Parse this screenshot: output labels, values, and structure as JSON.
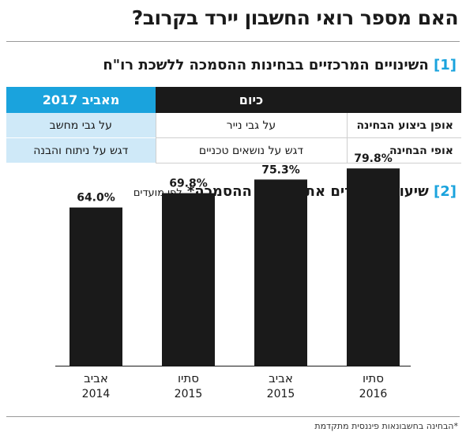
{
  "title": "האם מספר רואי החשבון יירד בקרוב?",
  "section1": {
    "badge": "[1]",
    "title": "השינויים המרכזיים בבחינות ההסמכה ללשכת רו\"ח"
  },
  "table": {
    "headers": [
      "",
      "כיום",
      "מאביב 2017"
    ],
    "rows": [
      {
        "label": "אופן ביצוע הבחינה",
        "today": "על גבי נייר",
        "from2017": "על גבי מחשב"
      },
      {
        "label": "אופי הבחינה",
        "today": "דגש על נושאים טכניים",
        "from2017": "דגש על ניתוח והבנה"
      }
    ]
  },
  "section2": {
    "badge": "[2]",
    "title": "שיעור העוברים את בחינות ההסמכה*",
    "subtitle": "לפי מועדים"
  },
  "chart_data": {
    "type": "bar",
    "categories": [
      {
        "season": "אביב",
        "year": "2014"
      },
      {
        "season": "סתיו",
        "year": "2015"
      },
      {
        "season": "אביב",
        "year": "2015"
      },
      {
        "season": "סתיו",
        "year": "2016"
      }
    ],
    "values": [
      64.0,
      69.8,
      75.3,
      79.8
    ],
    "value_labels": [
      "64.0%",
      "69.8%",
      "75.3%",
      "79.8%"
    ],
    "title": "שיעור העוברים את בחינות ההסמכה*",
    "bar_color": "#1a1a1a",
    "grid": false
  },
  "footnote": "*הבחינה בחשבונאות פיננסית מתקדמת",
  "colors": {
    "accent": "#1aa3dd",
    "accent_light": "#cfe9f8",
    "dark": "#1a1a1a"
  }
}
